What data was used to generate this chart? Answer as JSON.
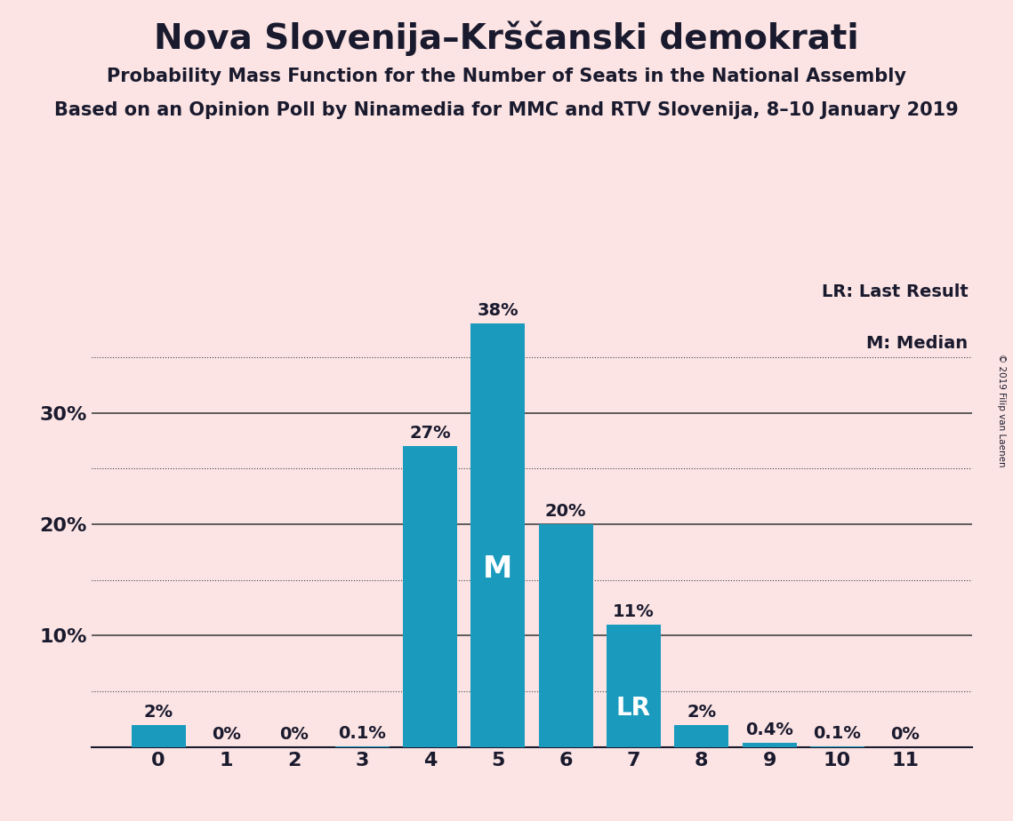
{
  "title": "Nova Slovenija–Krščanski demokrati",
  "subtitle1": "Probability Mass Function for the Number of Seats in the National Assembly",
  "subtitle2": "Based on an Opinion Poll by Ninamedia for MMC and RTV Slovenija, 8–10 January 2019",
  "copyright": "© 2019 Filip van Laenen",
  "categories": [
    0,
    1,
    2,
    3,
    4,
    5,
    6,
    7,
    8,
    9,
    10,
    11
  ],
  "values": [
    2.0,
    0.0,
    0.0,
    0.1,
    27.0,
    38.0,
    20.0,
    11.0,
    2.0,
    0.4,
    0.1,
    0.0
  ],
  "bar_labels": [
    "2%",
    "0%",
    "0%",
    "0.1%",
    "27%",
    "38%",
    "20%",
    "11%",
    "2%",
    "0.4%",
    "0.1%",
    "0%"
  ],
  "bar_color": "#1a9bbe",
  "background_color": "#fce4e4",
  "text_color": "#1a1a2e",
  "yticks": [
    0,
    10,
    20,
    30
  ],
  "ytick_labels": [
    "",
    "10%",
    "20%",
    "30%"
  ],
  "solid_grid": [
    10,
    20,
    30
  ],
  "dotted_grid": [
    5,
    15,
    25,
    35
  ],
  "grid_color": "#444444",
  "median_bar": 5,
  "lr_bar": 7,
  "legend_lr": "LR: Last Result",
  "legend_m": "M: Median",
  "ylim": [
    0,
    42
  ]
}
